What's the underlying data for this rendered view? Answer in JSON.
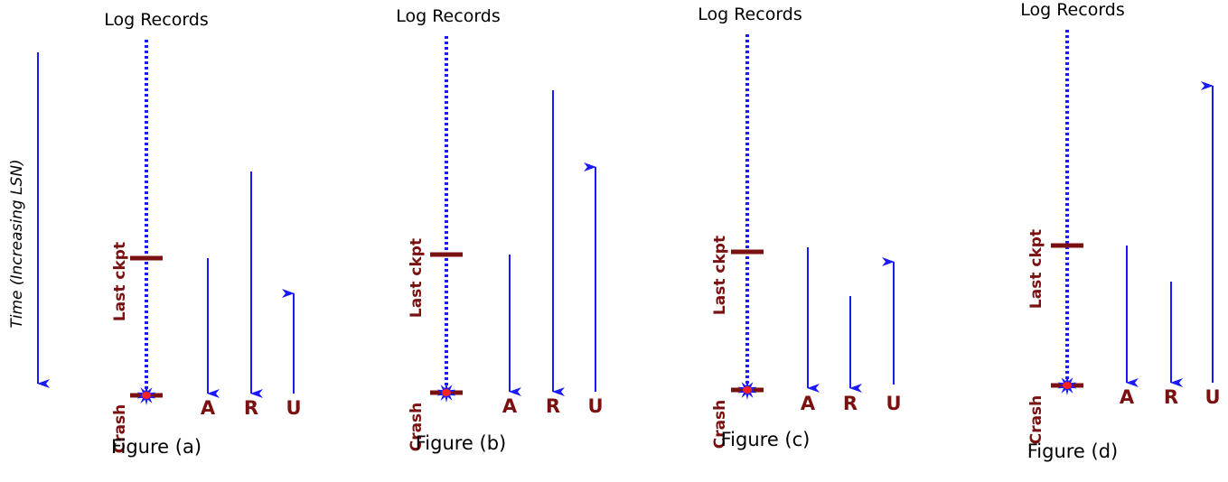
{
  "time_axis_label": "Time (Increasing LSN)",
  "colors": {
    "arrow": "#1a1aff",
    "log_line": "#1a1aff",
    "marker": "#7a1010",
    "star_outer": "#1a1aff",
    "star_inner": "#ff2020"
  },
  "panels": [
    {
      "heading": "Log Records",
      "caption": "Figure (a)",
      "checkpoint_label": "Last ckpt",
      "crash_label": "Crash",
      "phases": [
        {
          "letter": "A",
          "direction": "down"
        },
        {
          "letter": "R",
          "direction": "down"
        },
        {
          "letter": "U",
          "direction": "up"
        }
      ]
    },
    {
      "heading": "Log Records",
      "caption": "Figure (b)",
      "checkpoint_label": "Last ckpt",
      "crash_label": "Crash",
      "phases": [
        {
          "letter": "A",
          "direction": "down"
        },
        {
          "letter": "R",
          "direction": "down"
        },
        {
          "letter": "U",
          "direction": "up"
        }
      ]
    },
    {
      "heading": "Log Records",
      "caption": "Figure (c)",
      "checkpoint_label": "Last ckpt",
      "crash_label": "Crash",
      "phases": [
        {
          "letter": "A",
          "direction": "down"
        },
        {
          "letter": "R",
          "direction": "down"
        },
        {
          "letter": "U",
          "direction": "up"
        }
      ]
    },
    {
      "heading": "Log Records",
      "caption": "Figure (d)",
      "checkpoint_label": "Last ckpt",
      "crash_label": "Crash",
      "phases": [
        {
          "letter": "A",
          "direction": "down"
        },
        {
          "letter": "R",
          "direction": "down"
        },
        {
          "letter": "U",
          "direction": "up"
        }
      ]
    }
  ]
}
